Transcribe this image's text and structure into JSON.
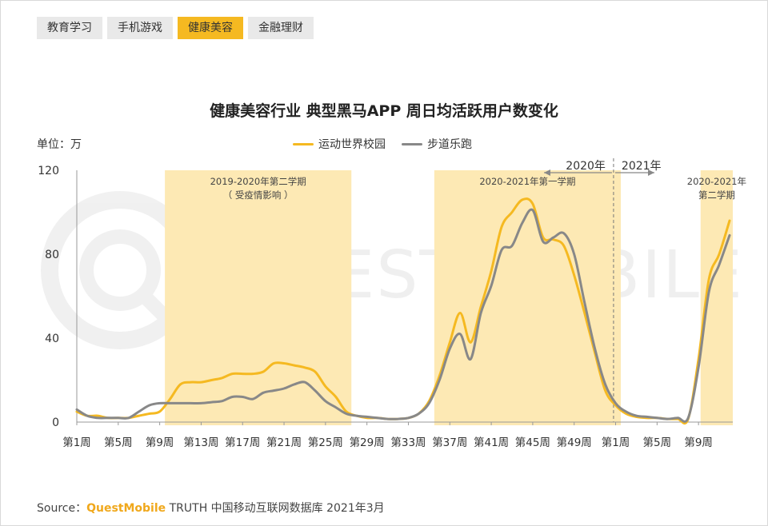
{
  "tabs": [
    {
      "label": "教育学习",
      "active": false
    },
    {
      "label": "手机游戏",
      "active": false
    },
    {
      "label": "健康美容",
      "active": true
    },
    {
      "label": "金融理财",
      "active": false
    }
  ],
  "watermark": {
    "text": "QUEST MOBILE"
  },
  "source": {
    "prefix": "Source：",
    "brand": "QuestMobile",
    "rest": "TRUTH 中国移动互联网数据库 2021年3月"
  },
  "colors": {
    "accent": "#f5b921",
    "shade": "#fde9b4",
    "series1": "#f5b921",
    "series2": "#888888"
  },
  "chart_data": {
    "type": "line",
    "title": "健康美容行业 典型黑马APP 周日均活跃用户数变化",
    "ylabel": "单位：万",
    "ylim": [
      0,
      120
    ],
    "yticks": [
      0,
      40,
      80,
      120
    ],
    "x_tick_labels": [
      "第1周",
      "第5周",
      "第9周",
      "第13周",
      "第17周",
      "第21周",
      "第25周",
      "第29周",
      "第33周",
      "第37周",
      "第41周",
      "第45周",
      "第49周",
      "第1周",
      "第5周",
      "第9周"
    ],
    "x_tick_index": [
      0,
      4,
      8,
      12,
      16,
      20,
      24,
      28,
      32,
      36,
      40,
      44,
      48,
      52,
      56,
      60
    ],
    "grid": false,
    "legend_position": "top-center",
    "bands": [
      {
        "start": 8.5,
        "end": 26.5,
        "label": "2019-2020年第二学期",
        "sublabel": "（ 受疫情影响 ）"
      },
      {
        "start": 34.5,
        "end": 52.5,
        "label": "2020-2021年第一学期",
        "sublabel": ""
      },
      {
        "start": 60.2,
        "end": 64,
        "label": "2020-2021年",
        "sublabel": "第二学期"
      }
    ],
    "year_divider": {
      "x": 51.8,
      "left_label": "2020年",
      "right_label": "2021年"
    },
    "series": [
      {
        "name": "运动世界校园",
        "color": "#f5b921",
        "values": [
          5,
          3,
          3,
          2,
          2,
          2,
          3,
          4,
          5,
          11,
          18,
          19,
          19,
          20,
          21,
          23,
          23,
          23,
          24,
          28,
          28,
          27,
          26,
          24,
          17,
          12,
          5,
          3,
          2,
          2,
          1.5,
          1.5,
          2,
          4,
          10,
          22,
          38,
          52,
          38,
          55,
          72,
          93,
          100,
          106,
          104,
          88,
          87,
          84,
          70,
          52,
          33,
          15,
          8,
          4,
          2.5,
          2,
          2,
          1.5,
          1.5,
          1.5,
          30,
          68,
          80,
          96
        ]
      },
      {
        "name": "步道乐跑",
        "color": "#888888",
        "values": [
          6,
          3,
          2,
          2,
          2,
          2,
          5,
          8,
          9,
          9,
          9,
          9,
          9,
          9.5,
          10,
          12,
          12,
          11,
          14,
          15,
          16,
          18,
          19,
          15,
          10,
          7,
          4,
          3,
          2.5,
          2,
          1.5,
          1.5,
          2,
          4,
          9,
          20,
          35,
          42,
          30,
          52,
          65,
          82,
          84,
          95,
          101,
          86,
          88,
          90,
          80,
          57,
          35,
          18,
          9,
          5,
          3,
          2.5,
          2,
          1.5,
          2,
          2,
          26,
          62,
          75,
          89
        ]
      }
    ]
  }
}
